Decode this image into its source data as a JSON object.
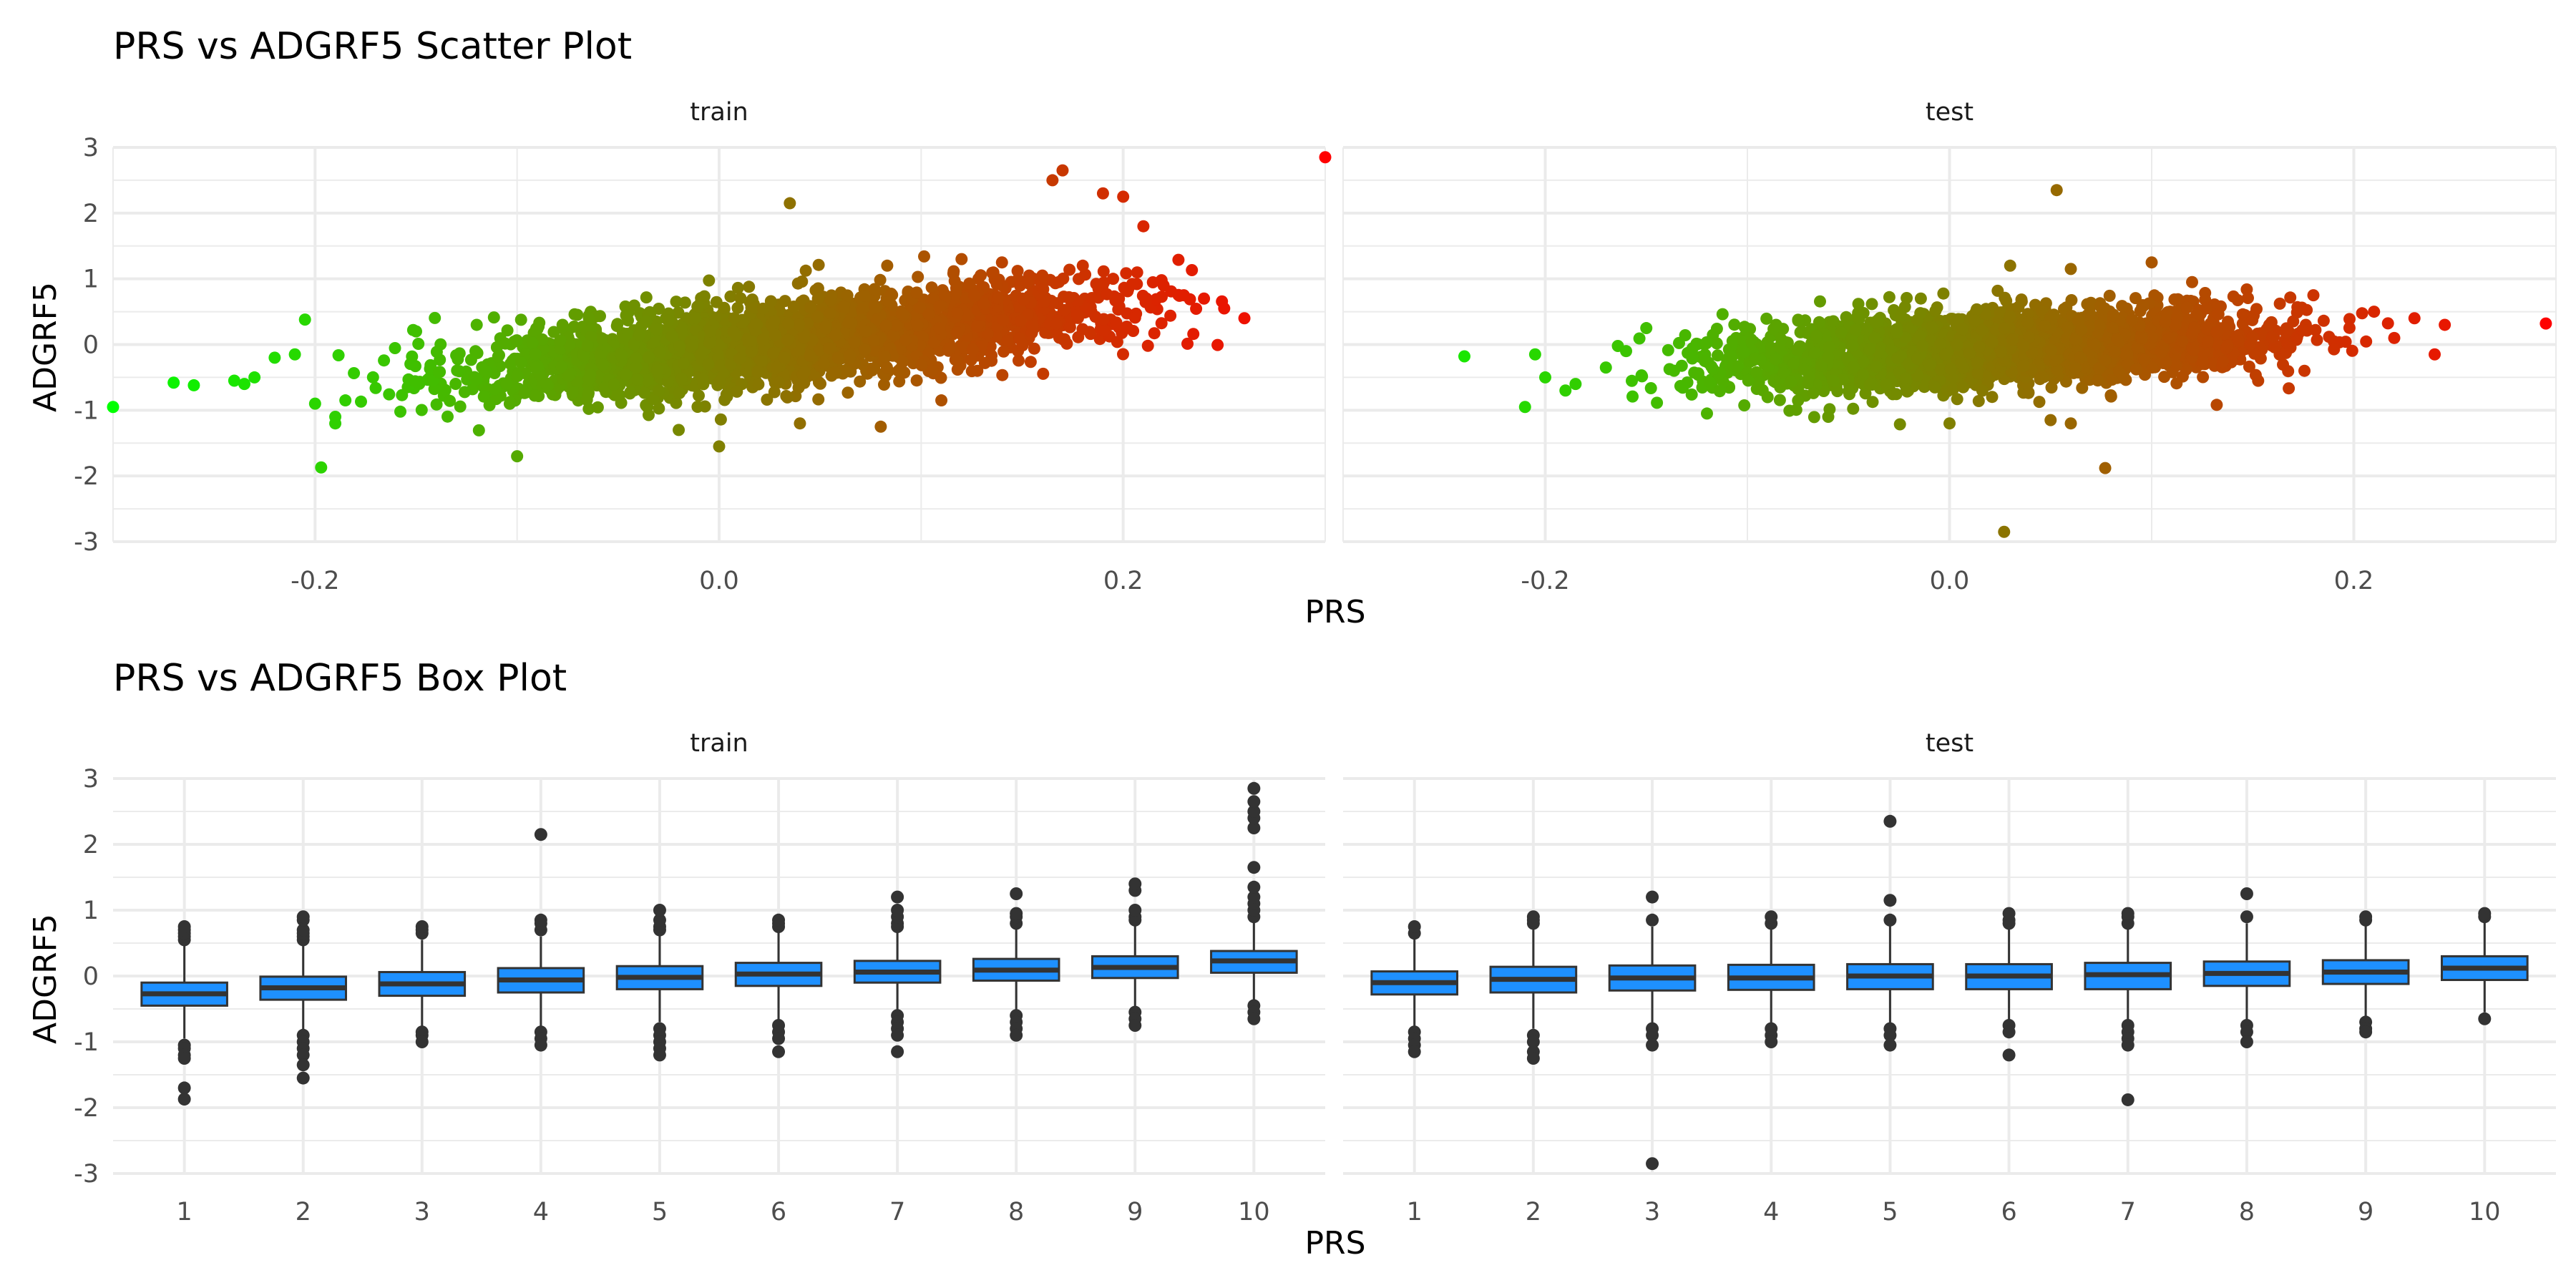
{
  "chart_data": [
    {
      "type": "scatter",
      "title": "PRS vs ADGRF5 Scatter Plot",
      "xlabel": "PRS",
      "ylabel": "ADGRF5",
      "xlim": [
        -0.3,
        0.3
      ],
      "ylim": [
        -3,
        3
      ],
      "x_ticks": [
        "-0.2",
        "0.0",
        "0.2"
      ],
      "y_ticks": [
        "-3",
        "-2",
        "-1",
        "0",
        "1",
        "2",
        "3"
      ],
      "grid": true,
      "color_scale": {
        "low": "#00ff00",
        "high": "#ff0000",
        "mapped_to": "PRS"
      },
      "facets": [
        {
          "label": "train",
          "cloud": {
            "x_range": [
              -0.2,
              0.26
            ],
            "slope": 3.0,
            "intercept": -0.05,
            "spread": 0.32
          },
          "points": [
            [
              -0.3,
              -0.95
            ],
            [
              -0.27,
              -0.58
            ],
            [
              -0.26,
              -0.62
            ],
            [
              -0.24,
              -0.55
            ],
            [
              -0.235,
              -0.6
            ],
            [
              -0.23,
              -0.5
            ],
            [
              -0.22,
              -0.2
            ],
            [
              -0.21,
              -0.15
            ],
            [
              -0.205,
              0.38
            ],
            [
              -0.2,
              -0.9
            ],
            [
              -0.197,
              -1.87
            ],
            [
              -0.19,
              -1.1
            ],
            [
              -0.19,
              -1.2
            ],
            [
              -0.185,
              -0.85
            ],
            [
              -0.1,
              -1.7
            ],
            [
              -0.15,
              0.2
            ],
            [
              -0.12,
              0.3
            ],
            [
              0.0,
              -1.55
            ],
            [
              -0.02,
              -1.3
            ],
            [
              0.04,
              -1.2
            ],
            [
              0.08,
              -1.25
            ],
            [
              0.11,
              -0.85
            ],
            [
              0.035,
              2.15
            ],
            [
              0.12,
              1.3
            ],
            [
              0.14,
              1.25
            ],
            [
              0.16,
              1.05
            ],
            [
              0.165,
              2.5
            ],
            [
              0.17,
              2.65
            ],
            [
              0.18,
              1.2
            ],
            [
              0.19,
              2.3
            ],
            [
              0.195,
              1.0
            ],
            [
              0.2,
              2.25
            ],
            [
              0.21,
              1.8
            ],
            [
              0.22,
              0.9
            ],
            [
              0.23,
              0.75
            ],
            [
              0.24,
              0.7
            ],
            [
              0.25,
              0.55
            ],
            [
              0.26,
              0.4
            ],
            [
              0.3,
              2.85
            ]
          ]
        },
        {
          "label": "test",
          "cloud": {
            "x_range": [
              -0.18,
              0.22
            ],
            "slope": 1.4,
            "intercept": -0.08,
            "spread": 0.28
          },
          "points": [
            [
              -0.24,
              -0.18
            ],
            [
              -0.21,
              -0.95
            ],
            [
              -0.205,
              -0.15
            ],
            [
              -0.2,
              -0.5
            ],
            [
              -0.19,
              -0.7
            ],
            [
              -0.185,
              -0.6
            ],
            [
              -0.17,
              -0.35
            ],
            [
              -0.16,
              -0.1
            ],
            [
              -0.15,
              0.25
            ],
            [
              -0.12,
              -1.05
            ],
            [
              -0.09,
              -0.8
            ],
            [
              -0.06,
              -1.1
            ],
            [
              0.0,
              -1.2
            ],
            [
              0.05,
              -1.15
            ],
            [
              0.06,
              -1.2
            ],
            [
              0.077,
              -1.88
            ],
            [
              0.027,
              -2.85
            ],
            [
              0.03,
              1.2
            ],
            [
              0.053,
              2.35
            ],
            [
              0.06,
              1.15
            ],
            [
              0.1,
              1.25
            ],
            [
              0.12,
              0.95
            ],
            [
              0.18,
              0.75
            ],
            [
              0.21,
              0.5
            ],
            [
              0.22,
              0.1
            ],
            [
              0.23,
              0.4
            ],
            [
              0.24,
              -0.15
            ],
            [
              0.245,
              0.3
            ],
            [
              0.295,
              0.32
            ]
          ]
        }
      ]
    },
    {
      "type": "box",
      "title": "PRS vs ADGRF5 Box Plot",
      "xlabel": "PRS",
      "ylabel": "ADGRF5",
      "categories": [
        "1",
        "2",
        "3",
        "4",
        "5",
        "6",
        "7",
        "8",
        "9",
        "10"
      ],
      "ylim": [
        -3,
        3
      ],
      "y_ticks": [
        "-3",
        "-2",
        "-1",
        "0",
        "1",
        "2",
        "3"
      ],
      "grid": true,
      "box_color": "#1e90ff",
      "facets": [
        {
          "label": "train",
          "boxes": [
            {
              "q1": -0.45,
              "median": -0.27,
              "q3": -0.1,
              "lo": -0.95,
              "hi": 0.5,
              "outliers": [
                0.55,
                0.6,
                0.65,
                0.7,
                0.75,
                -1.05,
                -1.1,
                -1.2,
                -1.25,
                -1.7,
                -1.87
              ]
            },
            {
              "q1": -0.36,
              "median": -0.18,
              "q3": -0.01,
              "lo": -0.85,
              "hi": 0.5,
              "outliers": [
                0.55,
                0.6,
                0.65,
                0.7,
                0.85,
                0.9,
                -0.9,
                -1.0,
                -1.1,
                -1.2,
                -1.35,
                -1.55
              ]
            },
            {
              "q1": -0.3,
              "median": -0.12,
              "q3": 0.06,
              "lo": -0.8,
              "hi": 0.55,
              "outliers": [
                0.65,
                0.7,
                0.75,
                -0.85,
                -0.9,
                -1.0
              ]
            },
            {
              "q1": -0.25,
              "median": -0.06,
              "q3": 0.12,
              "lo": -0.8,
              "hi": 0.6,
              "outliers": [
                0.7,
                0.8,
                0.85,
                2.15,
                -0.85,
                -0.95,
                -1.05
              ]
            },
            {
              "q1": -0.2,
              "median": -0.02,
              "q3": 0.15,
              "lo": -0.7,
              "hi": 0.65,
              "outliers": [
                0.7,
                0.75,
                0.85,
                1.0,
                -0.8,
                -0.9,
                -1.0,
                -1.1,
                -1.2
              ]
            },
            {
              "q1": -0.15,
              "median": 0.03,
              "q3": 0.2,
              "lo": -0.7,
              "hi": 0.7,
              "outliers": [
                0.75,
                0.8,
                0.85,
                -0.75,
                -0.85,
                -0.95,
                -1.15
              ]
            },
            {
              "q1": -0.1,
              "median": 0.06,
              "q3": 0.23,
              "lo": -0.55,
              "hi": 0.7,
              "outliers": [
                0.75,
                0.8,
                0.9,
                1.0,
                1.2,
                -0.6,
                -0.7,
                -0.8,
                -0.9,
                -1.15
              ]
            },
            {
              "q1": -0.07,
              "median": 0.09,
              "q3": 0.26,
              "lo": -0.55,
              "hi": 0.75,
              "outliers": [
                0.8,
                0.9,
                0.95,
                1.25,
                -0.6,
                -0.7,
                -0.8,
                -0.9
              ]
            },
            {
              "q1": -0.03,
              "median": 0.13,
              "q3": 0.3,
              "lo": -0.5,
              "hi": 0.8,
              "outliers": [
                0.85,
                0.9,
                1.0,
                1.3,
                1.4,
                -0.55,
                -0.65,
                -0.75
              ]
            },
            {
              "q1": 0.05,
              "median": 0.23,
              "q3": 0.38,
              "lo": -0.4,
              "hi": 0.85,
              "outliers": [
                0.9,
                1.0,
                1.1,
                1.2,
                1.35,
                1.65,
                2.25,
                2.4,
                2.5,
                2.65,
                2.85,
                -0.45,
                -0.55,
                -0.65
              ]
            }
          ]
        },
        {
          "label": "test",
          "boxes": [
            {
              "q1": -0.28,
              "median": -0.1,
              "q3": 0.07,
              "lo": -0.8,
              "hi": 0.6,
              "outliers": [
                0.65,
                0.75,
                -0.85,
                -0.95,
                -1.05,
                -1.15
              ]
            },
            {
              "q1": -0.25,
              "median": -0.05,
              "q3": 0.14,
              "lo": -0.8,
              "hi": 0.75,
              "outliers": [
                0.8,
                0.85,
                0.9,
                -0.9,
                -1.0,
                -1.15,
                -1.25
              ]
            },
            {
              "q1": -0.22,
              "median": -0.03,
              "q3": 0.16,
              "lo": -0.75,
              "hi": 0.75,
              "outliers": [
                0.85,
                1.2,
                -0.8,
                -0.9,
                -1.05,
                -2.85
              ]
            },
            {
              "q1": -0.21,
              "median": -0.03,
              "q3": 0.17,
              "lo": -0.75,
              "hi": 0.75,
              "outliers": [
                0.8,
                0.9,
                -0.8,
                -0.9,
                -1.0
              ]
            },
            {
              "q1": -0.2,
              "median": 0.0,
              "q3": 0.18,
              "lo": -0.75,
              "hi": 0.8,
              "outliers": [
                0.85,
                1.15,
                2.35,
                -0.8,
                -0.9,
                -1.05
              ]
            },
            {
              "q1": -0.2,
              "median": 0.0,
              "q3": 0.18,
              "lo": -0.7,
              "hi": 0.75,
              "outliers": [
                0.8,
                0.85,
                0.95,
                -0.75,
                -0.85,
                -1.2
              ]
            },
            {
              "q1": -0.2,
              "median": 0.02,
              "q3": 0.2,
              "lo": -0.7,
              "hi": 0.75,
              "outliers": [
                0.8,
                0.9,
                0.95,
                -0.75,
                -0.85,
                -0.95,
                -1.05,
                -1.88
              ]
            },
            {
              "q1": -0.15,
              "median": 0.04,
              "q3": 0.22,
              "lo": -0.7,
              "hi": 0.8,
              "outliers": [
                0.9,
                1.25,
                -0.75,
                -0.85,
                -1.0
              ]
            },
            {
              "q1": -0.12,
              "median": 0.06,
              "q3": 0.24,
              "lo": -0.65,
              "hi": 0.8,
              "outliers": [
                0.85,
                0.9,
                -0.7,
                -0.8,
                -0.85
              ]
            },
            {
              "q1": -0.06,
              "median": 0.12,
              "q3": 0.3,
              "lo": -0.55,
              "hi": 0.85,
              "outliers": [
                0.9,
                0.95,
                -0.65
              ]
            }
          ]
        }
      ]
    }
  ]
}
